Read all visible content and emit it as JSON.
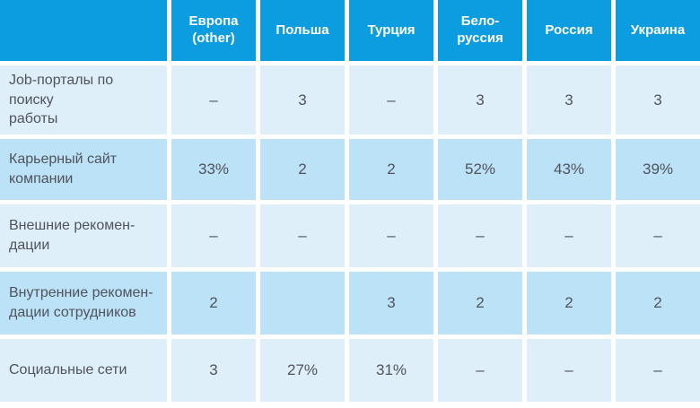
{
  "colors": {
    "header_bg": "#0C9DE0",
    "row_light_bg": "#DFEFFA",
    "row_dark_bg": "#BCE2F8",
    "header_text": "#FFFFFF",
    "body_text": "#50535B",
    "gap": "#FFFFFF"
  },
  "chart_data": {
    "type": "table",
    "title": "",
    "columns": [
      "Европа\n(other)",
      "Польша",
      "Турция",
      "Бело-\nруссия",
      "Россия",
      "Украина"
    ],
    "rows": [
      {
        "label": "Job-порталы по поиску\nработы",
        "values": [
          "–",
          "3",
          "–",
          "3",
          "3",
          "3"
        ]
      },
      {
        "label": "Карьерный сайт\nкомпании",
        "values": [
          "33%",
          "2",
          "2",
          "52%",
          "43%",
          "39%"
        ]
      },
      {
        "label": "Внешние рекомен-\nдации",
        "values": [
          "–",
          "–",
          "–",
          "–",
          "–",
          "–"
        ]
      },
      {
        "label": "Внутренние рекомен-\nдации сотрудников",
        "values": [
          "2",
          "",
          "3",
          "2",
          "2",
          "2"
        ]
      },
      {
        "label": "Социальные сети",
        "values": [
          "3",
          "27%",
          "31%",
          "–",
          "–",
          "–"
        ]
      }
    ]
  }
}
